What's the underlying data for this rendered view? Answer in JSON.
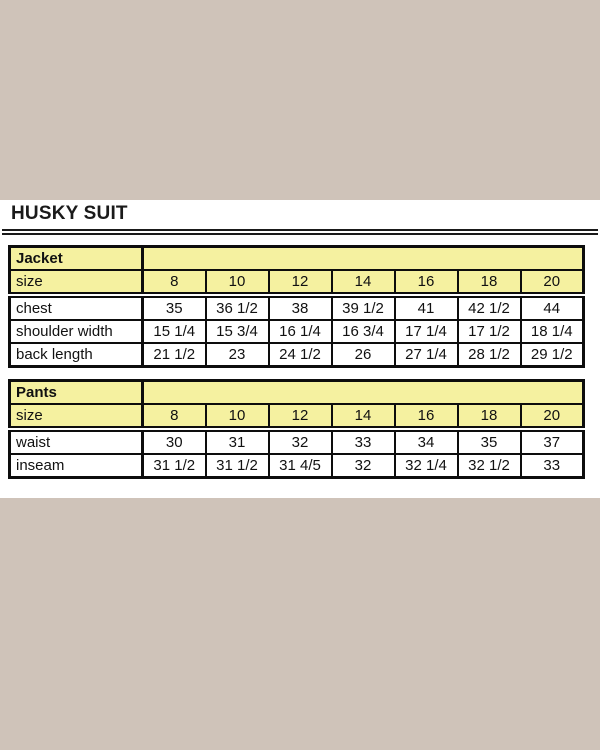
{
  "page": {
    "title": "HUSKY SUIT"
  },
  "colors": {
    "background_tan": "#cfc3b9",
    "panel_white": "#ffffff",
    "header_yellow": "#f5f1a0",
    "line_black": "#0d0d0d"
  },
  "jacket": {
    "name": "Jacket",
    "size_label": "size",
    "sizes": [
      "8",
      "10",
      "12",
      "14",
      "16",
      "18",
      "20"
    ],
    "rows": [
      {
        "label": "chest",
        "values": [
          "35",
          "36 1/2",
          "38",
          "39 1/2",
          "41",
          "42 1/2",
          "44"
        ]
      },
      {
        "label": "shoulder width",
        "values": [
          "15 1/4",
          "15 3/4",
          "16 1/4",
          "16 3/4",
          "17 1/4",
          "17 1/2",
          "18 1/4"
        ]
      },
      {
        "label": "back length",
        "values": [
          "21 1/2",
          "23",
          "24 1/2",
          "26",
          "27 1/4",
          "28 1/2",
          "29 1/2"
        ]
      }
    ]
  },
  "pants": {
    "name": "Pants",
    "size_label": "size",
    "sizes": [
      "8",
      "10",
      "12",
      "14",
      "16",
      "18",
      "20"
    ],
    "rows": [
      {
        "label": "waist",
        "values": [
          "30",
          "31",
          "32",
          "33",
          "34",
          "35",
          "37"
        ]
      },
      {
        "label": "inseam",
        "values": [
          "31 1/2",
          "31 1/2",
          "31 4/5",
          "32",
          "32 1/4",
          "32 1/2",
          "33"
        ]
      }
    ]
  }
}
